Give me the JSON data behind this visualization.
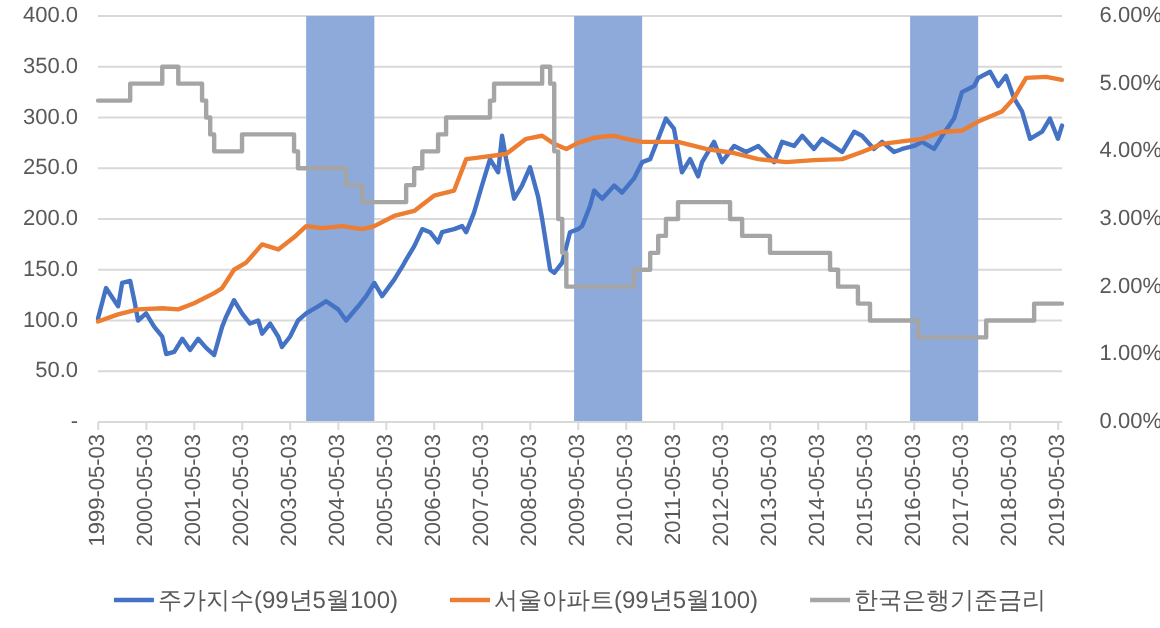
{
  "chart_data": {
    "type": "line",
    "xlim": [
      "1999-05-01",
      "2019-06-01"
    ],
    "xticks": [
      "1999-05-03",
      "2000-05-03",
      "2001-05-03",
      "2002-05-03",
      "2003-05-03",
      "2004-05-03",
      "2005-05-03",
      "2006-05-03",
      "2007-05-03",
      "2008-05-03",
      "2009-05-03",
      "2010-05-03",
      "2011-05-03",
      "2012-05-03",
      "2013-05-03",
      "2014-05-03",
      "2015-05-03",
      "2016-05-03",
      "2017-05-03",
      "2018-05-03",
      "2019-05-03"
    ],
    "ylim": [
      0,
      400
    ],
    "yticks": [
      {
        "value": 0,
        "label": "-"
      },
      {
        "value": 50,
        "label": "50.0"
      },
      {
        "value": 100,
        "label": "100.0"
      },
      {
        "value": 150,
        "label": "150.0"
      },
      {
        "value": 200,
        "label": "200.0"
      },
      {
        "value": 250,
        "label": "250.0"
      },
      {
        "value": 300,
        "label": "300.0"
      },
      {
        "value": 350,
        "label": "350.0"
      },
      {
        "value": 400,
        "label": "400.0"
      }
    ],
    "y2lim": [
      0,
      6
    ],
    "y2ticks": [
      {
        "value": 0,
        "label": "0.00%"
      },
      {
        "value": 1,
        "label": "1.00%"
      },
      {
        "value": 2,
        "label": "2.00%"
      },
      {
        "value": 3,
        "label": "3.00%"
      },
      {
        "value": 4,
        "label": "4.00%"
      },
      {
        "value": 5,
        "label": "5.00%"
      },
      {
        "value": 6,
        "label": "6.00%"
      }
    ],
    "grid": "y",
    "legend": "bottom",
    "bands": [
      {
        "axis": "x",
        "from": "2003-09",
        "to": "2005-02",
        "color": "#8eaadb"
      },
      {
        "axis": "x",
        "from": "2009-04",
        "to": "2010-09",
        "color": "#8eaadb"
      },
      {
        "axis": "x",
        "from": "2016-04",
        "to": "2017-09",
        "color": "#8eaadb"
      }
    ],
    "series": [
      {
        "name": "주가지수(99년5월100)",
        "color": "#4472c4",
        "x": [
          "1999-05",
          "1999-07",
          "1999-09",
          "1999-10",
          "1999-11",
          "2000-01",
          "2000-02",
          "2000-03",
          "2000-05",
          "2000-07",
          "2000-09",
          "2000-10",
          "2000-12",
          "2001-02",
          "2001-04",
          "2001-06",
          "2001-08",
          "2001-10",
          "2001-12",
          "2002-01",
          "2002-03",
          "2002-05",
          "2002-07",
          "2002-09",
          "2002-10",
          "2002-12",
          "2003-02",
          "2003-03",
          "2003-05",
          "2003-07",
          "2003-09",
          "2003-12",
          "2004-02",
          "2004-05",
          "2004-07",
          "2004-10",
          "2004-12",
          "2005-02",
          "2005-04",
          "2005-07",
          "2005-09",
          "2005-10",
          "2005-12",
          "2006-02",
          "2006-04",
          "2006-06",
          "2006-07",
          "2006-10",
          "2006-12",
          "2007-01",
          "2007-03",
          "2007-05",
          "2007-07",
          "2007-09",
          "2007-10",
          "2007-11",
          "2008-01",
          "2008-03",
          "2008-05",
          "2008-07",
          "2008-08",
          "2008-10",
          "2008-11",
          "2009-01",
          "2009-03",
          "2009-05",
          "2009-06",
          "2009-08",
          "2009-09",
          "2009-11",
          "2010-02",
          "2010-04",
          "2010-07",
          "2010-09",
          "2010-11",
          "2011-01",
          "2011-03",
          "2011-05",
          "2011-07",
          "2011-09",
          "2011-11",
          "2011-12",
          "2012-03",
          "2012-05",
          "2012-08",
          "2012-11",
          "2013-02",
          "2013-06",
          "2013-08",
          "2013-11",
          "2014-01",
          "2014-04",
          "2014-06",
          "2014-11",
          "2015-02",
          "2015-04",
          "2015-07",
          "2015-09",
          "2015-12",
          "2016-02",
          "2016-05",
          "2016-07",
          "2016-10",
          "2016-12",
          "2017-03",
          "2017-05",
          "2017-08",
          "2017-09",
          "2017-12",
          "2018-02",
          "2018-04",
          "2018-06",
          "2018-08",
          "2018-10",
          "2019-01",
          "2019-03",
          "2019-05",
          "2019-06"
        ],
        "values": [
          102,
          132,
          120,
          114,
          137,
          139,
          120,
          100,
          107,
          94,
          84,
          67,
          69,
          82,
          71,
          82,
          73,
          66,
          94,
          104,
          120,
          107,
          97,
          100,
          87,
          97,
          84,
          74,
          84,
          100,
          107,
          114,
          119,
          111,
          100,
          114,
          124,
          137,
          124,
          140,
          153,
          160,
          173,
          190,
          187,
          177,
          187,
          190,
          193,
          187,
          206,
          233,
          259,
          246,
          282,
          259,
          220,
          233,
          251,
          222,
          200,
          150,
          147,
          157,
          187,
          190,
          193,
          213,
          228,
          220,
          233,
          226,
          240,
          256,
          259,
          279,
          299,
          289,
          246,
          259,
          242,
          256,
          276,
          256,
          272,
          266,
          272,
          256,
          276,
          272,
          282,
          269,
          279,
          266,
          286,
          282,
          269,
          276,
          266,
          269,
          272,
          276,
          269,
          282,
          299,
          325,
          331,
          339,
          345,
          331,
          341,
          319,
          306,
          279,
          286,
          299,
          279,
          292
        ]
      },
      {
        "name": "서울아파트(99년5월100)",
        "color": "#ed7d31",
        "x": [
          "1999-05",
          "1999-10",
          "2000-03",
          "2000-09",
          "2001-01",
          "2001-05",
          "2001-10",
          "2001-12",
          "2002-03",
          "2002-06",
          "2002-10",
          "2003-02",
          "2003-06",
          "2003-09",
          "2004-01",
          "2004-06",
          "2004-11",
          "2005-02",
          "2005-07",
          "2005-12",
          "2006-05",
          "2006-10",
          "2007-01",
          "2007-05",
          "2007-11",
          "2008-04",
          "2008-08",
          "2008-11",
          "2009-02",
          "2009-05",
          "2009-09",
          "2009-11",
          "2010-02",
          "2010-05",
          "2010-09",
          "2011-01",
          "2011-06",
          "2012-01",
          "2012-08",
          "2013-02",
          "2013-09",
          "2014-04",
          "2014-11",
          "2015-04",
          "2015-09",
          "2016-01",
          "2016-07",
          "2016-12",
          "2017-05",
          "2017-09",
          "2018-03",
          "2018-06",
          "2018-09",
          "2019-02",
          "2019-06"
        ],
        "values": [
          99,
          106,
          111,
          112,
          111,
          117,
          127,
          132,
          150,
          157,
          175,
          170,
          182,
          193,
          191,
          193,
          190,
          193,
          203,
          208,
          223,
          228,
          259,
          261,
          264,
          279,
          282,
          274,
          269,
          275,
          280,
          281,
          282,
          279,
          276,
          276,
          276,
          269,
          265,
          259,
          256,
          258,
          259,
          266,
          274,
          276,
          279,
          286,
          287,
          296,
          306,
          319,
          339,
          340,
          337
        ]
      },
      {
        "name": "한국은행기준금리",
        "color": "#a5a5a5",
        "type": "step",
        "axis": "y2",
        "x": [
          "1999-05",
          "2000-01",
          "2000-09",
          "2001-01",
          "2001-07",
          "2001-08",
          "2001-09",
          "2001-10",
          "2002-05",
          "2003-06",
          "2003-07",
          "2004-07",
          "2004-11",
          "2005-10",
          "2005-12",
          "2006-02",
          "2006-06",
          "2006-08",
          "2007-07",
          "2007-08",
          "2008-08",
          "2008-10",
          "2008-11",
          "2008-12",
          "2009-01",
          "2009-02",
          "2010-07",
          "2010-11",
          "2011-01",
          "2011-03",
          "2011-06",
          "2012-07",
          "2012-10",
          "2013-05",
          "2014-08",
          "2014-10",
          "2015-03",
          "2015-06",
          "2016-06",
          "2017-11",
          "2018-11",
          "2019-06"
        ],
        "values": [
          4.75,
          5.0,
          5.25,
          5.0,
          4.75,
          4.5,
          4.25,
          4.0,
          4.25,
          4.0,
          3.75,
          3.5,
          3.25,
          3.5,
          3.75,
          4.0,
          4.25,
          4.5,
          4.75,
          5.0,
          5.25,
          5.0,
          4.0,
          3.0,
          2.5,
          2.0,
          2.25,
          2.5,
          2.75,
          3.0,
          3.25,
          3.0,
          2.75,
          2.5,
          2.25,
          2.0,
          1.75,
          1.5,
          1.25,
          1.5,
          1.75,
          1.75
        ]
      }
    ]
  }
}
